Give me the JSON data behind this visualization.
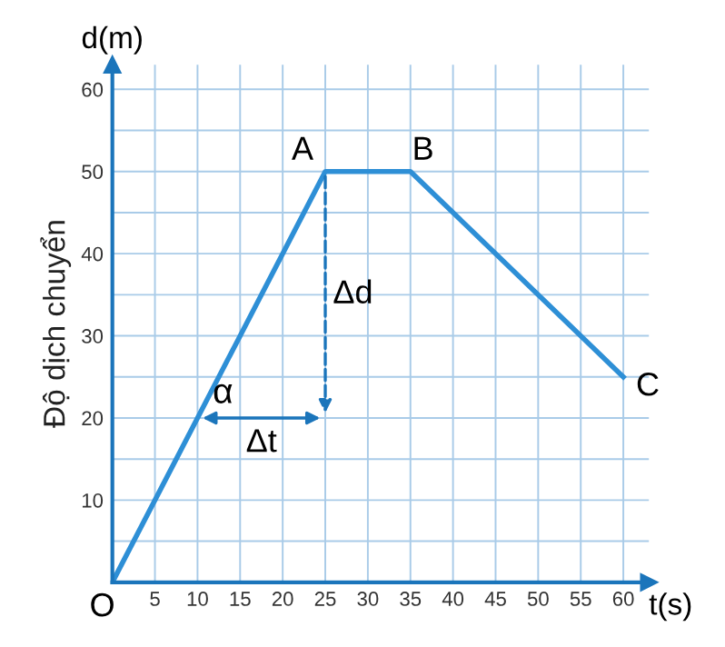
{
  "chart_data": {
    "type": "line",
    "ylabel": "Độ dịch chuyển",
    "xlabel": "t(s)",
    "x": [
      0,
      25,
      35,
      60
    ],
    "series": [
      {
        "color": "#2e8fd6",
        "values": [
          0,
          50,
          50,
          25
        ]
      }
    ],
    "xlim": [
      0,
      63
    ],
    "ylim": [
      0,
      63
    ],
    "xticks": [
      5,
      10,
      15,
      20,
      25,
      30,
      35,
      40,
      45,
      50,
      55,
      60
    ],
    "yticks": [
      {
        "value": 5,
        "label": null
      },
      10,
      {
        "value": 15,
        "label": null
      },
      20,
      {
        "value": 25,
        "label": null
      },
      30,
      {
        "value": 35,
        "label": null
      },
      40,
      {
        "value": 45,
        "label": null
      },
      50,
      {
        "value": 55,
        "label": null
      },
      60
    ],
    "grid": true,
    "marker": "none",
    "line_style": "solid",
    "annotations": [
      "d(m)",
      {
        "text": "A",
        "x": 25,
        "y": 50
      },
      {
        "text": "B",
        "x": 35,
        "y": 50
      },
      {
        "text": "C",
        "x": 60,
        "y": 25
      },
      "O",
      "Δd",
      "Δt",
      {
        "text": "α",
        "x": 10,
        "y": 20
      }
    ]
  }
}
